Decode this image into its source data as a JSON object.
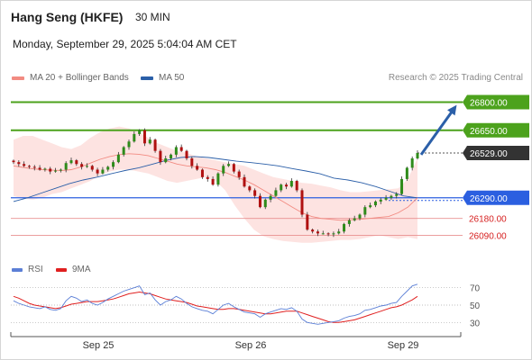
{
  "header": {
    "instrument": "Hang Seng (HKFE)",
    "timeframe": "30 MIN",
    "timestamp": "Monday, September 29, 2025 5:04:04 AM CET"
  },
  "legend": {
    "ma20_label": "MA 20 + Bollinger Bands",
    "ma50_label": "MA 50",
    "ma20_color": "#f28b82",
    "ma50_color": "#2b5fa8"
  },
  "copyright": "Research © 2025 Trading Central",
  "rsi_legend": {
    "rsi_label": "RSI",
    "ma_label": "9MA",
    "rsi_color": "#5b7fd6",
    "ma_color": "#e02020"
  },
  "chart_data": [
    {
      "type": "line",
      "role": "price",
      "ylim": [
        26020,
        26860
      ],
      "price_levels": [
        {
          "label": "26800.00",
          "value": 26800,
          "kind": "resistance",
          "color": "#4ca21c"
        },
        {
          "label": "26650.00",
          "value": 26650,
          "kind": "resistance",
          "color": "#4ca21c"
        },
        {
          "label": "26529.00",
          "value": 26529,
          "kind": "last",
          "color": "#333333"
        },
        {
          "label": "26290.00",
          "value": 26290,
          "kind": "pivot",
          "color": "#2b5fe0"
        },
        {
          "label": "26180.00",
          "value": 26180,
          "kind": "support",
          "color": "#d62020"
        },
        {
          "label": "26090.00",
          "value": 26090,
          "kind": "support",
          "color": "#d62020"
        }
      ],
      "x_ticks": [
        "Sep 25",
        "Sep 26",
        "Sep 29"
      ],
      "closes": [
        26480,
        26470,
        26460,
        26455,
        26450,
        26440,
        26445,
        26430,
        26435,
        26440,
        26475,
        26490,
        26470,
        26455,
        26460,
        26440,
        26420,
        26440,
        26455,
        26480,
        26520,
        26560,
        26590,
        26630,
        26650,
        26580,
        26600,
        26540,
        26480,
        26500,
        26520,
        26560,
        26540,
        26500,
        26460,
        26440,
        26400,
        26390,
        26360,
        26420,
        26460,
        26470,
        26430,
        26400,
        26350,
        26330,
        26300,
        26240,
        26280,
        26300,
        26330,
        26360,
        26350,
        26380,
        26330,
        26200,
        26120,
        26110,
        26100,
        26100,
        26095,
        26100,
        26110,
        26150,
        26170,
        26180,
        26200,
        26240,
        26250,
        26270,
        26280,
        26290,
        26300,
        26310,
        26390,
        26450,
        26500,
        26529
      ],
      "ma20": [
        26460,
        26452,
        26445,
        26440,
        26437,
        26435,
        26440,
        26455,
        26475,
        26495,
        26510,
        26520,
        26525,
        26522,
        26515,
        26500,
        26485,
        26470,
        26460,
        26455,
        26450,
        26440,
        26425,
        26405,
        26385,
        26360,
        26330,
        26300,
        26270,
        26240,
        26210,
        26190,
        26180,
        26175,
        26170,
        26172,
        26175,
        26180,
        26185,
        26190,
        26210,
        26240,
        26290
      ],
      "bollinger_upper": [
        26600,
        26620,
        26620,
        26600,
        26580,
        26560,
        26550,
        26570,
        26610,
        26640,
        26660,
        26670,
        26660,
        26640,
        26610,
        26580,
        26560,
        26540,
        26530,
        26510,
        26500,
        26490,
        26480,
        26470,
        26460,
        26440,
        26420,
        26400,
        26390,
        26380,
        26370,
        26365,
        26355,
        26345,
        26330,
        26320,
        26320,
        26325,
        26330,
        26335,
        26340,
        26390,
        26500
      ],
      "bollinger_lower": [
        26300,
        26285,
        26280,
        26290,
        26310,
        26320,
        26340,
        26360,
        26380,
        26410,
        26430,
        26440,
        26440,
        26430,
        26420,
        26400,
        26380,
        26370,
        26380,
        26390,
        26400,
        26380,
        26330,
        26250,
        26180,
        26120,
        26085,
        26070,
        26060,
        26055,
        26050,
        26050,
        26055,
        26060,
        26065,
        26065,
        26070,
        26080,
        26090,
        26080,
        26070,
        26080,
        26070
      ],
      "ma50": [
        26270,
        26290,
        26315,
        26340,
        26365,
        26385,
        26400,
        26418,
        26435,
        26450,
        26470,
        26490,
        26505,
        26510,
        26505,
        26495,
        26485,
        26478,
        26470,
        26460,
        26446,
        26433,
        26418,
        26395,
        26385,
        26370,
        26350,
        26325,
        26300,
        26290
      ],
      "forecast_arrow": {
        "from": 26520,
        "to": 26800
      }
    },
    {
      "type": "line",
      "role": "oscillator",
      "ylim": [
        20,
        80
      ],
      "y_ticks": [
        70,
        50,
        30
      ],
      "series": [
        {
          "name": "RSI",
          "values": [
            55,
            52,
            50,
            48,
            47,
            46,
            48,
            45,
            44,
            46,
            55,
            60,
            58,
            54,
            56,
            52,
            50,
            53,
            57,
            60,
            63,
            66,
            68,
            70,
            72,
            62,
            64,
            56,
            50,
            54,
            56,
            60,
            57,
            52,
            48,
            46,
            44,
            43,
            40,
            45,
            50,
            52,
            48,
            45,
            42,
            41,
            40,
            36,
            40,
            42,
            44,
            46,
            45,
            47,
            43,
            34,
            30,
            29,
            28,
            29,
            30,
            31,
            32,
            35,
            37,
            38,
            40,
            44,
            45,
            47,
            49,
            50,
            52,
            53,
            60,
            66,
            72,
            74
          ]
        },
        {
          "name": "9MA",
          "values": [
            60,
            58,
            55,
            52,
            50,
            49,
            48,
            47,
            46,
            47,
            49,
            51,
            52,
            53,
            54,
            54,
            54,
            55,
            56,
            57,
            59,
            61,
            63,
            64,
            65,
            64,
            63,
            61,
            59,
            57,
            56,
            55,
            54,
            53,
            51,
            49,
            48,
            47,
            46,
            45,
            45,
            46,
            46,
            45,
            44,
            43,
            42,
            41,
            40,
            40,
            41,
            42,
            43,
            43,
            43,
            41,
            39,
            37,
            35,
            33,
            31,
            30,
            30,
            31,
            32,
            33,
            35,
            37,
            39,
            41,
            43,
            45,
            47,
            48,
            50,
            53,
            56,
            60
          ]
        }
      ]
    }
  ]
}
